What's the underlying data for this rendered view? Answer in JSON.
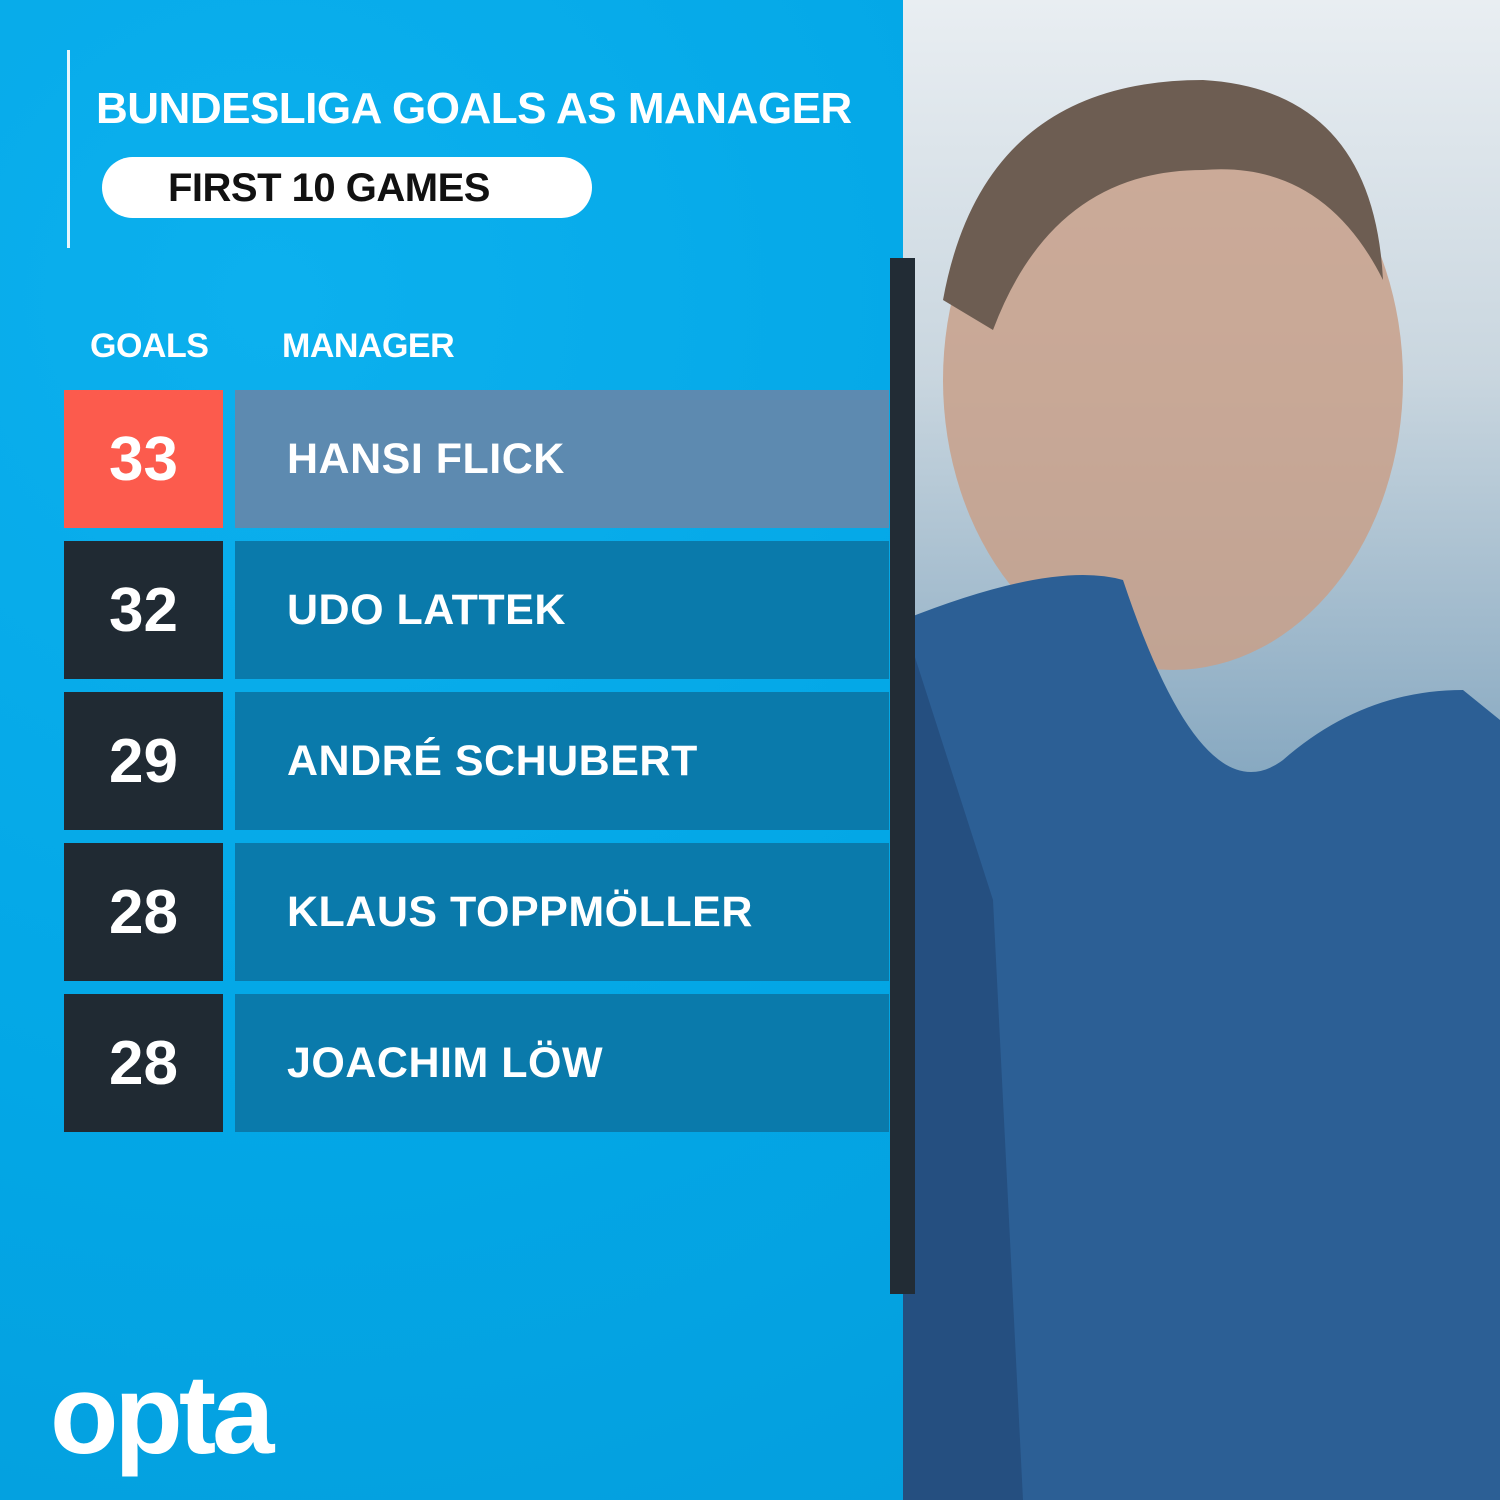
{
  "header": {
    "title": "BUNDESLIGA GOALS AS MANAGER",
    "subtitle": "FIRST 10 GAMES"
  },
  "table": {
    "columns": [
      "GOALS",
      "MANAGER"
    ],
    "rows": [
      {
        "goals": "33",
        "manager": "HANSI FLICK",
        "highlight": true
      },
      {
        "goals": "32",
        "manager": "UDO LATTEK"
      },
      {
        "goals": "29",
        "manager": "ANDRÉ SCHUBERT"
      },
      {
        "goals": "28",
        "manager": "KLAUS TOPPMÖLLER"
      },
      {
        "goals": "28",
        "manager": "JOACHIM LÖW"
      }
    ]
  },
  "brand": {
    "logo": "opta"
  },
  "colors": {
    "background": "#04a9e8",
    "highlight_goals": "#fc5b4d",
    "highlight_name": "#5d8ab0",
    "goals_box": "#202a33",
    "name_box": "#0a7aab"
  }
}
